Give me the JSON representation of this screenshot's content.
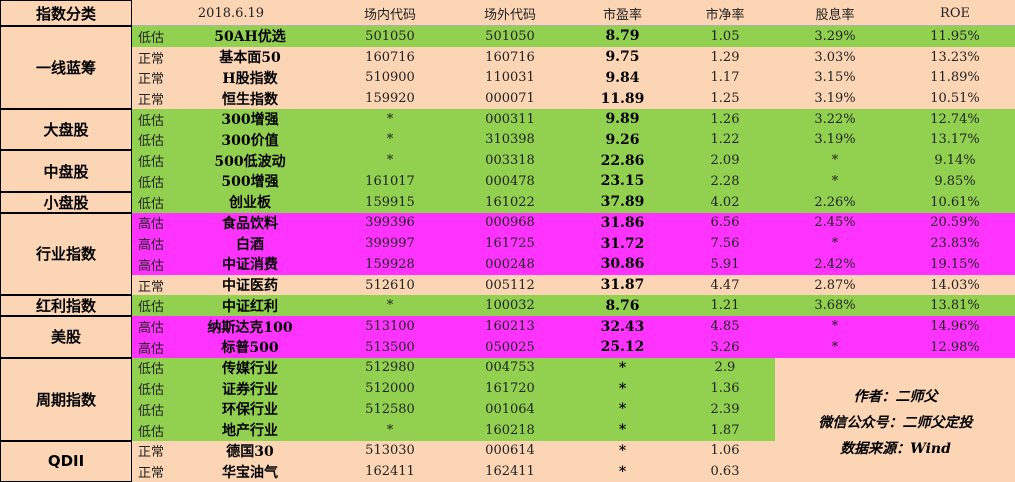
{
  "header": {
    "category": "指数分类",
    "date": "2018.6.19",
    "onsite_code": "场内代码",
    "offsite_code": "场外代码",
    "pe": "市盈率",
    "pb": "市净率",
    "dividend": "股息率",
    "roe": "ROE"
  },
  "categories": [
    {
      "label": "一线蓝筹",
      "start": 0,
      "span": 4
    },
    {
      "label": "大盘股",
      "start": 4,
      "span": 2
    },
    {
      "label": "中盘股",
      "start": 6,
      "span": 2
    },
    {
      "label": "小盘股",
      "start": 8,
      "span": 1
    },
    {
      "label": "行业指数",
      "start": 9,
      "span": 4
    },
    {
      "label": "红利指数",
      "start": 13,
      "span": 1
    },
    {
      "label": "美股",
      "start": 14,
      "span": 2
    },
    {
      "label": "周期指数",
      "start": 16,
      "span": 4
    },
    {
      "label": "QDII",
      "start": 20,
      "span": 2
    }
  ],
  "rows": [
    {
      "status": "低估",
      "name": "50AH优选",
      "onsite": "501050",
      "offsite": "501050",
      "pe": "8.79",
      "pb": "1.05",
      "dividend": "3.29%",
      "roe": "11.95%",
      "color": "#92d050"
    },
    {
      "status": "正常",
      "name": "基本面50",
      "onsite": "160716",
      "offsite": "160716",
      "pe": "9.75",
      "pb": "1.29",
      "dividend": "3.03%",
      "roe": "13.23%",
      "color": "#fcd5b4"
    },
    {
      "status": "正常",
      "name": "H股指数",
      "onsite": "510900",
      "offsite": "110031",
      "pe": "9.84",
      "pb": "1.17",
      "dividend": "3.15%",
      "roe": "11.89%",
      "color": "#fcd5b4"
    },
    {
      "status": "正常",
      "name": "恒生指数",
      "onsite": "159920",
      "offsite": "000071",
      "pe": "11.89",
      "pb": "1.25",
      "dividend": "3.19%",
      "roe": "10.51%",
      "color": "#fcd5b4"
    },
    {
      "status": "低估",
      "name": "300增强",
      "onsite": "*",
      "offsite": "000311",
      "pe": "9.89",
      "pb": "1.26",
      "dividend": "3.22%",
      "roe": "12.74%",
      "color": "#92d050"
    },
    {
      "status": "低估",
      "name": "300价值",
      "onsite": "*",
      "offsite": "310398",
      "pe": "9.26",
      "pb": "1.22",
      "dividend": "3.19%",
      "roe": "13.17%",
      "color": "#92d050"
    },
    {
      "status": "低估",
      "name": "500低波动",
      "onsite": "*",
      "offsite": "003318",
      "pe": "22.86",
      "pb": "2.09",
      "dividend": "*",
      "roe": "9.14%",
      "color": "#92d050"
    },
    {
      "status": "低估",
      "name": "500增强",
      "onsite": "161017",
      "offsite": "000478",
      "pe": "23.15",
      "pb": "2.28",
      "dividend": "*",
      "roe": "9.85%",
      "color": "#92d050"
    },
    {
      "status": "低估",
      "name": "创业板",
      "onsite": "159915",
      "offsite": "161022",
      "pe": "37.89",
      "pb": "4.02",
      "dividend": "2.26%",
      "roe": "10.61%",
      "color": "#92d050"
    },
    {
      "status": "高估",
      "name": "食品饮料",
      "onsite": "399396",
      "offsite": "000968",
      "pe": "31.86",
      "pb": "6.56",
      "dividend": "2.45%",
      "roe": "20.59%",
      "color": "#ff33ff"
    },
    {
      "status": "高估",
      "name": "白酒",
      "onsite": "399997",
      "offsite": "161725",
      "pe": "31.72",
      "pb": "7.56",
      "dividend": "*",
      "roe": "23.83%",
      "color": "#ff33ff"
    },
    {
      "status": "高估",
      "name": "中证消费",
      "onsite": "159928",
      "offsite": "000248",
      "pe": "30.86",
      "pb": "5.91",
      "dividend": "2.42%",
      "roe": "19.15%",
      "color": "#ff33ff"
    },
    {
      "status": "正常",
      "name": "中证医药",
      "onsite": "512610",
      "offsite": "005112",
      "pe": "31.87",
      "pb": "4.47",
      "dividend": "2.87%",
      "roe": "14.03%",
      "color": "#fcd5b4"
    },
    {
      "status": "低估",
      "name": "中证红利",
      "onsite": "*",
      "offsite": "100032",
      "pe": "8.76",
      "pb": "1.21",
      "dividend": "3.68%",
      "roe": "13.81%",
      "color": "#92d050"
    },
    {
      "status": "高估",
      "name": "纳斯达克100",
      "onsite": "513100",
      "offsite": "160213",
      "pe": "32.43",
      "pb": "4.85",
      "dividend": "*",
      "roe": "14.96%",
      "color": "#ff33ff"
    },
    {
      "status": "高估",
      "name": "标普500",
      "onsite": "513500",
      "offsite": "050025",
      "pe": "25.12",
      "pb": "3.26",
      "dividend": "*",
      "roe": "12.98%",
      "color": "#ff33ff"
    },
    {
      "status": "低估",
      "name": "传媒行业",
      "onsite": "512980",
      "offsite": "004753",
      "pe": "*",
      "pb": "2.9",
      "color": "#92d050"
    },
    {
      "status": "低估",
      "name": "证券行业",
      "onsite": "512000",
      "offsite": "161720",
      "pe": "*",
      "pb": "1.36",
      "color": "#92d050"
    },
    {
      "status": "低估",
      "name": "环保行业",
      "onsite": "512580",
      "offsite": "001064",
      "pe": "*",
      "pb": "2.39",
      "color": "#92d050"
    },
    {
      "status": "低估",
      "name": "地产行业",
      "onsite": "*",
      "offsite": "160218",
      "pe": "*",
      "pb": "1.87",
      "color": "#92d050"
    },
    {
      "status": "正常",
      "name": "德国30",
      "onsite": "513030",
      "offsite": "000614",
      "pe": "*",
      "pb": "1.06",
      "color": "#fcd5b4"
    },
    {
      "status": "正常",
      "name": "华宝油气",
      "onsite": "162411",
      "offsite": "162411",
      "pe": "*",
      "pb": "0.63",
      "color": "#fcd5b4"
    }
  ],
  "credits": {
    "author": "作者：二师父",
    "wechat": "微信公众号：二师父定投",
    "source": "数据来源：Wind"
  }
}
